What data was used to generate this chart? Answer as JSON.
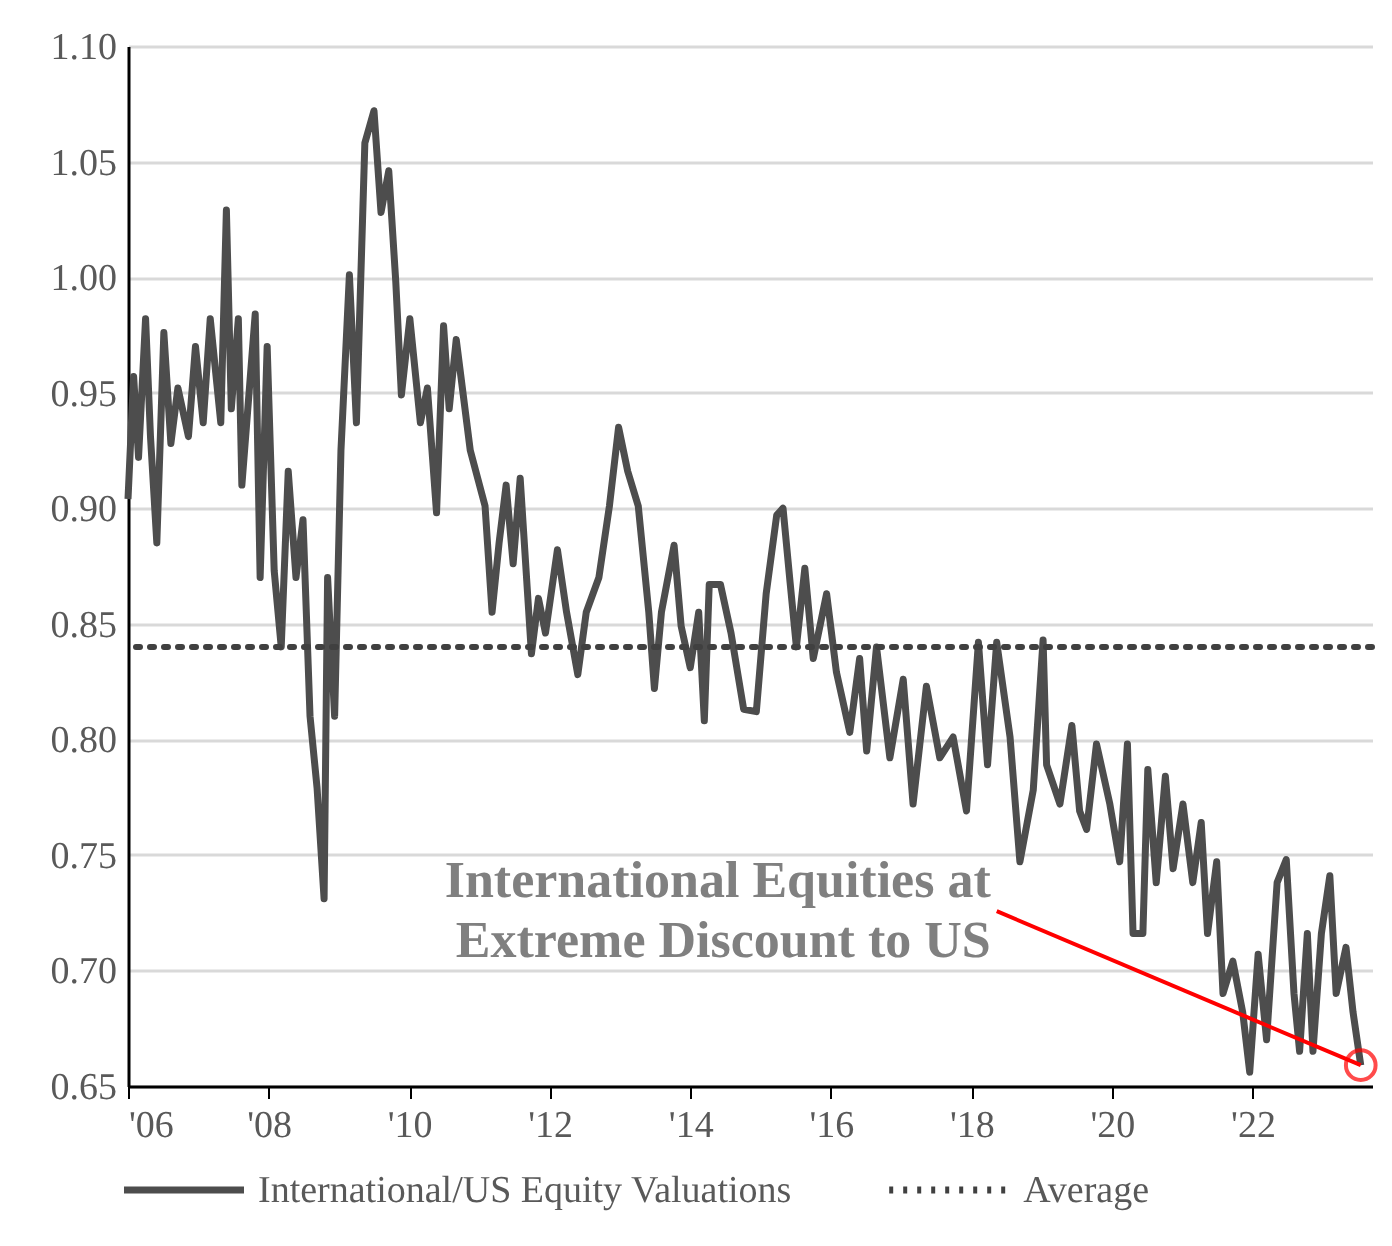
{
  "chart_data": {
    "type": "line",
    "x": [
      2006.0,
      2006.08,
      2006.15,
      2006.25,
      2006.32,
      2006.41,
      2006.51,
      2006.61,
      2006.71,
      2006.86,
      2006.96,
      2007.07,
      2007.17,
      2007.32,
      2007.4,
      2007.47,
      2007.57,
      2007.62,
      2007.81,
      2007.88,
      2007.98,
      2008.08,
      2008.18,
      2008.28,
      2008.39,
      2008.49,
      2008.59,
      2008.69,
      2008.79,
      2008.84,
      2008.94,
      2009.03,
      2009.15,
      2009.25,
      2009.37,
      2009.5,
      2009.6,
      2009.71,
      2009.81,
      2009.89,
      2010.01,
      2010.16,
      2010.26,
      2010.39,
      2010.49,
      2010.57,
      2010.67,
      2010.87,
      2011.08,
      2011.18,
      2011.28,
      2011.38,
      2011.48,
      2011.58,
      2011.74,
      2011.84,
      2011.94,
      2012.11,
      2012.24,
      2012.4,
      2012.52,
      2012.7,
      2012.85,
      2012.98,
      2013.11,
      2013.26,
      2013.41,
      2013.49,
      2013.59,
      2013.77,
      2013.87,
      2014.0,
      2014.12,
      2014.2,
      2014.27,
      2014.43,
      2014.58,
      2014.76,
      2014.94,
      2015.08,
      2015.23,
      2015.32,
      2015.42,
      2015.51,
      2015.63,
      2015.75,
      2015.94,
      2016.08,
      2016.27,
      2016.41,
      2016.51,
      2016.65,
      2016.84,
      2017.03,
      2017.17,
      2017.36,
      2017.55,
      2017.74,
      2017.93,
      2018.1,
      2018.23,
      2018.36,
      2018.55,
      2018.69,
      2018.88,
      2019.02,
      2019.07,
      2019.26,
      2019.43,
      2019.54,
      2019.64,
      2019.78,
      2019.97,
      2020.11,
      2020.22,
      2020.3,
      2020.44,
      2020.51,
      2020.63,
      2020.76,
      2020.87,
      2021.01,
      2021.15,
      2021.27,
      2021.36,
      2021.49,
      2021.58,
      2021.72,
      2021.86,
      2021.96,
      2022.08,
      2022.2,
      2022.35,
      2022.48,
      2022.59,
      2022.67,
      2022.78,
      2022.86,
      2022.98,
      2023.1,
      2023.19,
      2023.33,
      2023.43,
      2023.54
    ],
    "series": [
      {
        "name": "International/US Equity Valuations",
        "color": "#4d4d4d",
        "values": [
          0.904,
          0.957,
          0.922,
          0.982,
          0.931,
          0.885,
          0.976,
          0.928,
          0.952,
          0.931,
          0.97,
          0.937,
          0.982,
          0.937,
          1.029,
          0.943,
          0.982,
          0.91,
          0.984,
          0.87,
          0.97,
          0.873,
          0.84,
          0.916,
          0.87,
          0.895,
          0.81,
          0.779,
          0.731,
          0.87,
          0.81,
          0.925,
          1.001,
          0.937,
          1.058,
          1.072,
          1.028,
          1.046,
          0.998,
          0.949,
          0.982,
          0.937,
          0.952,
          0.898,
          0.979,
          0.943,
          0.973,
          0.925,
          0.901,
          0.855,
          0.885,
          0.91,
          0.876,
          0.913,
          0.837,
          0.861,
          0.846,
          0.882,
          0.855,
          0.828,
          0.855,
          0.87,
          0.901,
          0.935,
          0.916,
          0.901,
          0.855,
          0.822,
          0.855,
          0.884,
          0.849,
          0.831,
          0.855,
          0.808,
          0.867,
          0.867,
          0.846,
          0.813,
          0.812,
          0.863,
          0.897,
          0.9,
          0.868,
          0.84,
          0.874,
          0.835,
          0.863,
          0.829,
          0.803,
          0.835,
          0.795,
          0.84,
          0.792,
          0.826,
          0.772,
          0.823,
          0.792,
          0.801,
          0.769,
          0.842,
          0.789,
          0.842,
          0.801,
          0.747,
          0.778,
          0.843,
          0.789,
          0.772,
          0.806,
          0.769,
          0.761,
          0.798,
          0.772,
          0.747,
          0.798,
          0.716,
          0.716,
          0.787,
          0.738,
          0.784,
          0.744,
          0.772,
          0.738,
          0.764,
          0.716,
          0.747,
          0.69,
          0.704,
          0.682,
          0.656,
          0.707,
          0.67,
          0.738,
          0.748,
          0.69,
          0.665,
          0.716,
          0.665,
          0.716,
          0.741,
          0.69,
          0.71,
          0.682,
          0.659
        ]
      }
    ],
    "ref_lines": [
      {
        "axis": "y",
        "value": 0.84,
        "label": "Average",
        "color": "#404040",
        "line_style": "dotted"
      }
    ],
    "annotations": [
      {
        "text": "International Equities at\nExtreme Discount to US",
        "x": 2023.54,
        "y": 0.659
      }
    ],
    "xlim": [
      2006,
      2023.7
    ],
    "xticks": [
      {
        "value": 2006,
        "label": "'06"
      },
      {
        "value": 2008,
        "label": "'08"
      },
      {
        "value": 2010,
        "label": "'10"
      },
      {
        "value": 2012,
        "label": "'12"
      },
      {
        "value": 2014,
        "label": "'14"
      },
      {
        "value": 2016,
        "label": "'16"
      },
      {
        "value": 2018,
        "label": "'18"
      },
      {
        "value": 2020,
        "label": "'20"
      },
      {
        "value": 2022,
        "label": "'22"
      }
    ],
    "ylim": [
      0.65,
      1.1
    ],
    "yticks": [
      {
        "value": 0.65,
        "label": "0.65"
      },
      {
        "value": 0.7,
        "label": "0.70"
      },
      {
        "value": 0.75,
        "label": "0.75"
      },
      {
        "value": 0.8,
        "label": "0.80"
      },
      {
        "value": 0.85,
        "label": "0.85"
      },
      {
        "value": 0.9,
        "label": "0.90"
      },
      {
        "value": 0.95,
        "label": "0.95"
      },
      {
        "value": 1.0,
        "label": "1.00"
      },
      {
        "value": 1.05,
        "label": "1.05"
      },
      {
        "value": 1.1,
        "label": "1.10"
      }
    ],
    "grid": "y",
    "legend": "bottom",
    "line_style": "solid",
    "marker": "none"
  }
}
